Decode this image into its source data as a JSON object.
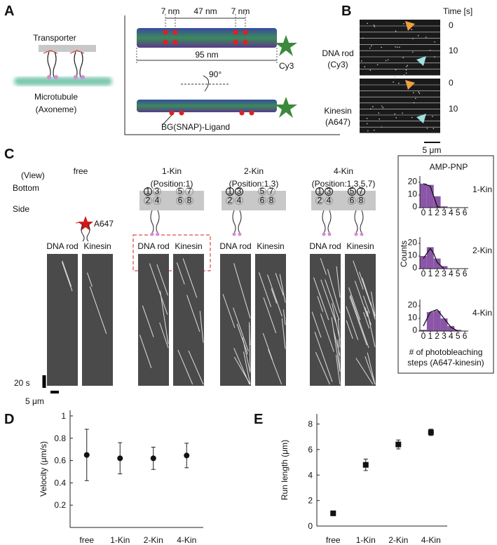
{
  "panel_a": {
    "label": "A",
    "transporter": "Transporter",
    "microtubule": "Microtubule",
    "axoneme": "(Axoneme)",
    "dim_left": "7 nm",
    "dim_mid": "47 nm",
    "dim_right": "7 nm",
    "dim_total": "95 nm",
    "dye": "Cy3",
    "rotation": "90°",
    "ligand": "BG(SNAP)-Ligand"
  },
  "panel_b": {
    "label": "B",
    "time_header": "Time [s]",
    "rows": [
      {
        "name": "DNA rod",
        "dye": "(Cy3)",
        "times": [
          0,
          10
        ]
      },
      {
        "name": "Kinesin",
        "dye": "(A647)",
        "times": [
          0,
          10
        ]
      }
    ],
    "scale": "5 μm"
  },
  "panel_c": {
    "label": "C",
    "view": "(View)",
    "bottom": "Bottom",
    "side": "Side",
    "dye": "A647",
    "kymo_labels": [
      "DNA rod",
      "Kinesin"
    ],
    "scale_time": "20 s",
    "scale_space": "5 μm",
    "sites": [
      [
        1,
        3,
        5,
        7
      ],
      [
        2,
        4,
        6,
        8
      ]
    ],
    "columns": [
      {
        "title": "free"
      },
      {
        "title": "1-Kin",
        "position": "(Position:1)",
        "active": [
          1
        ]
      },
      {
        "title": "2-Kin",
        "position": "(Position:1,3)",
        "active": [
          1,
          3
        ]
      },
      {
        "title": "4-Kin",
        "position": "(Position:1,3,5,7)",
        "active": [
          1,
          3,
          5,
          7
        ]
      }
    ],
    "inset": {
      "type": "histogram",
      "title": "AMP-PNP",
      "ylabel": "Counts",
      "xlabel": [
        "# of photobleaching",
        "steps (A647-kinesin)"
      ],
      "color": "#8b56a8",
      "bins": [
        -0.5,
        0.5,
        1.5,
        2.5,
        3.5,
        4.5,
        5.5,
        6.5
      ],
      "xlim": [
        -0.5,
        6.5
      ],
      "xticks": [
        0,
        1,
        2,
        3,
        4,
        5,
        6
      ],
      "ylim": [
        0,
        25
      ],
      "yticks": [
        0,
        10,
        20
      ],
      "histograms": [
        {
          "name": "1-Kin",
          "values": [
            19,
            18,
            9,
            1,
            0,
            0,
            0
          ],
          "fit_x": [
            0,
            1,
            1.5,
            2,
            2.5
          ],
          "fit": [
            19,
            17,
            9,
            1,
            0
          ]
        },
        {
          "name": "2-Kin",
          "values": [
            10,
            17,
            8,
            2,
            0,
            0,
            0
          ],
          "fit_x": [
            0,
            1,
            1.5,
            2,
            3
          ],
          "fit": [
            8,
            16,
            12,
            5,
            0
          ]
        },
        {
          "name": "4-Kin",
          "values": [
            1,
            15,
            16,
            10,
            4,
            1,
            0
          ],
          "fit_x": [
            0,
            1,
            2,
            3,
            4,
            5
          ],
          "fit": [
            4,
            15,
            17,
            10,
            3,
            0
          ]
        }
      ]
    }
  },
  "panel_d": {
    "label": "D",
    "type": "errorbar",
    "marker": "circle",
    "ylabel": "Velocity (μm/s)",
    "categories": [
      "free",
      "1-Kin",
      "2-Kin",
      "4-Kin"
    ],
    "values": [
      0.65,
      0.62,
      0.62,
      0.645
    ],
    "errors": [
      0.23,
      0.14,
      0.1,
      0.11
    ],
    "ylim": [
      0,
      1.05
    ],
    "yticks": [
      0.2,
      0.4,
      0.6,
      0.8,
      1
    ]
  },
  "panel_e": {
    "label": "E",
    "type": "errorbar",
    "marker": "square",
    "ylabel": "Run length (μm)",
    "categories": [
      "free",
      "1-Kin",
      "2-Kin",
      "4-Kin"
    ],
    "values": [
      1.0,
      4.8,
      6.4,
      7.35
    ],
    "errors": [
      0.05,
      0.45,
      0.35,
      0.25
    ],
    "ylim": [
      0,
      8.8
    ],
    "yticks": [
      0,
      2,
      4,
      6,
      8
    ]
  }
}
